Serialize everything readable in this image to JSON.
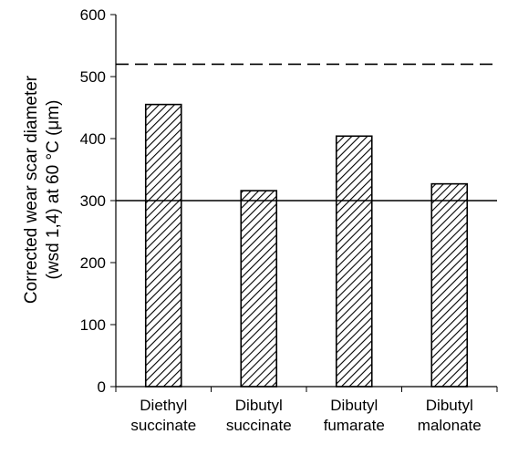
{
  "chart_data": {
    "type": "bar",
    "categories": [
      [
        "Diethyl",
        "succinate"
      ],
      [
        "Dibutyl",
        "succinate"
      ],
      [
        "Dibutyl",
        "fumarate"
      ],
      [
        "Dibutyl",
        "malonate"
      ]
    ],
    "values": [
      455,
      316,
      404,
      327
    ],
    "ylabel_lines": [
      "Corrected wear scar diameter",
      "(wsd 1,4) at 60 °C (μm)"
    ],
    "xlabel": "",
    "ylim": [
      0,
      600
    ],
    "yticks": [
      "0",
      "100",
      "200",
      "300",
      "400",
      "500",
      "600"
    ],
    "reference_lines": [
      {
        "value": 520,
        "style": "dashed"
      },
      {
        "value": 300,
        "style": "solid"
      }
    ],
    "bar_fill": "diagonal-hatch",
    "colors": {
      "bar_stroke": "#000000",
      "hatch": "#000000",
      "background": "#ffffff"
    },
    "grid": false,
    "legend": "none"
  }
}
